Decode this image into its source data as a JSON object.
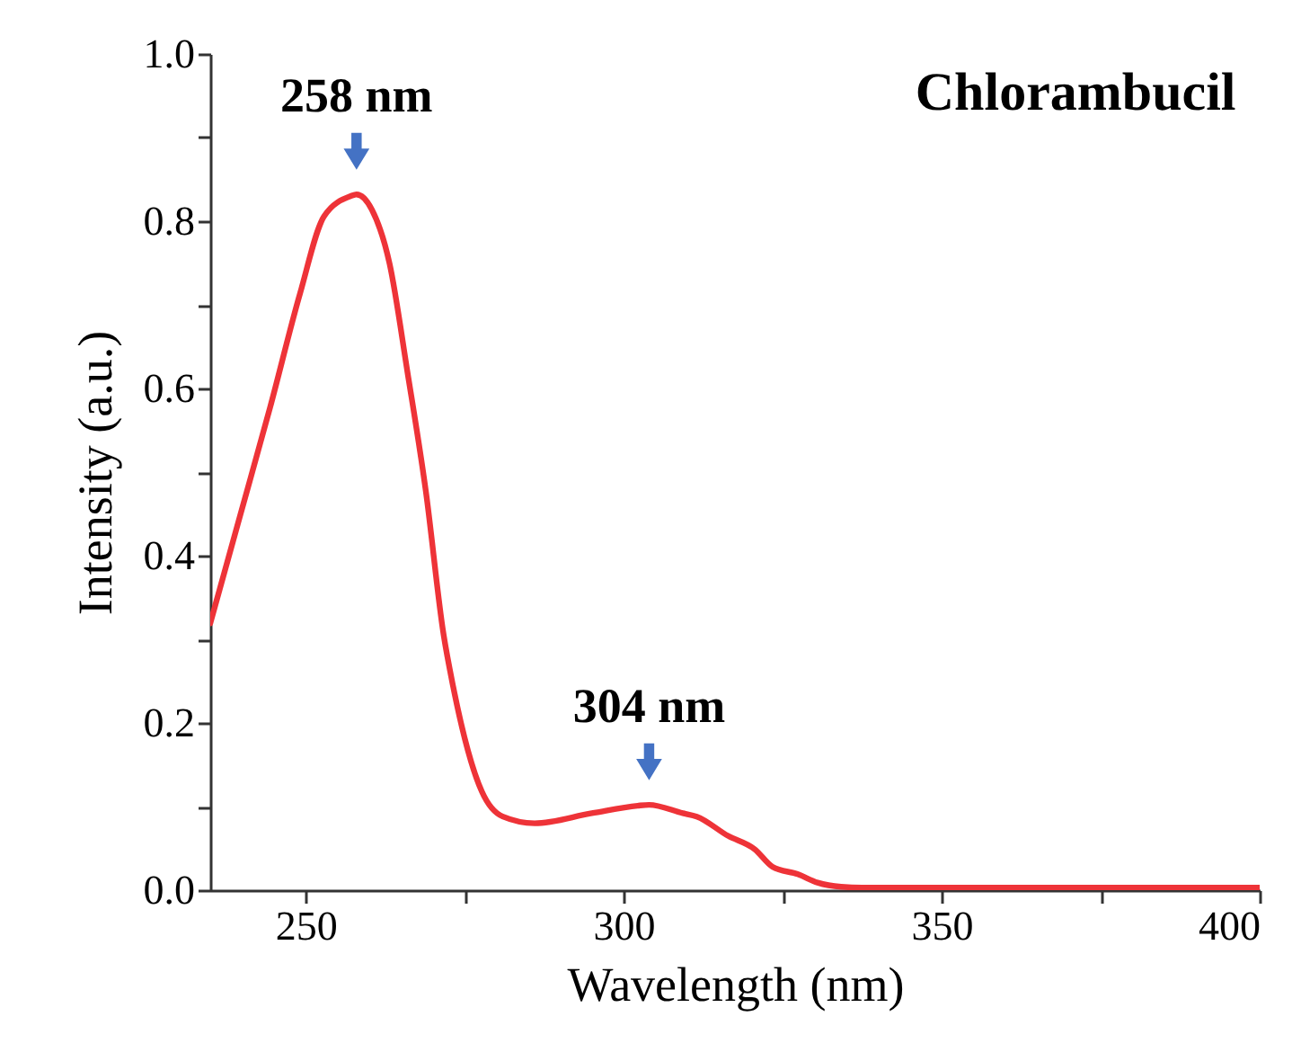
{
  "chart_data": {
    "type": "line",
    "title": "Chlorambucil",
    "xlabel": "Wavelength (nm)",
    "ylabel": "Intensity (a.u.)",
    "xlim": [
      235,
      400
    ],
    "xticks": [
      250,
      {
        "value": 275,
        "label": null
      },
      300,
      {
        "value": 325,
        "label": null
      },
      350,
      {
        "value": 375,
        "label": null
      },
      400
    ],
    "ylim": [
      0,
      1.0
    ],
    "yticks": [
      {
        "value": 0,
        "label": "0.0"
      },
      {
        "value": 0.1,
        "label": null
      },
      0.2,
      {
        "value": 0.3,
        "label": null
      },
      0.4,
      {
        "value": 0.5,
        "label": null
      },
      0.6,
      {
        "value": 0.7,
        "label": null
      },
      0.8,
      {
        "value": 0.9,
        "label": null
      },
      {
        "value": 1,
        "label": "1.0"
      }
    ],
    "line_style": "solid",
    "series": [
      {
        "color": "#ee3338",
        "x": [
          235,
          239.7,
          244.4,
          249.1,
          252.9,
          257.1,
          258,
          260.4,
          263.2,
          266,
          268.9,
          271.7,
          273.1,
          277.7,
          281,
          286,
          295,
          302.2,
          304,
          309.3,
          311.5,
          316.4,
          320.6,
          323.4,
          327.4,
          330.5,
          334.2,
          337.5,
          350,
          375,
          400
        ],
        "values": [
          0.319,
          0.448,
          0.577,
          0.713,
          0.806,
          0.83,
          0.832,
          0.814,
          0.749,
          0.62,
          0.477,
          0.305,
          0.247,
          0.118,
          0.088,
          0.08,
          0.092,
          0.101,
          0.102,
          0.092,
          0.088,
          0.065,
          0.049,
          0.028,
          0.019,
          0.009,
          0.004,
          0.003,
          0.003,
          0.003,
          0.003
        ]
      }
    ],
    "annotations": [
      {
        "text": "258 nm",
        "x": 258,
        "y": 0.832
      },
      {
        "text": "304 nm",
        "x": 304,
        "y": 0.102
      }
    ]
  }
}
